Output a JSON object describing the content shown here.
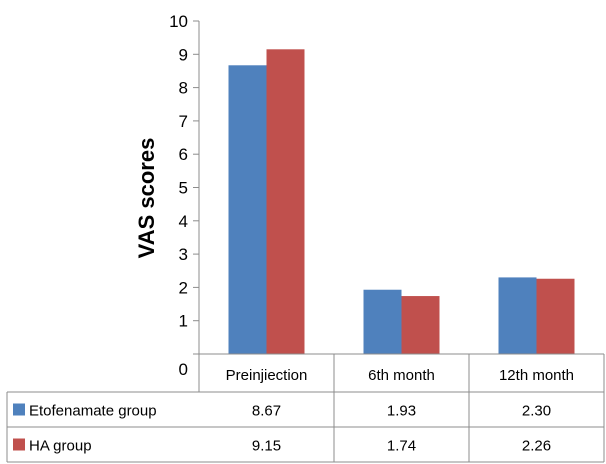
{
  "chart_data": {
    "type": "bar",
    "title": "",
    "xlabel": "",
    "ylabel": "VAS scores",
    "ylim": [
      0,
      10
    ],
    "yticks": [
      0,
      1,
      2,
      3,
      4,
      5,
      6,
      7,
      8,
      9,
      10
    ],
    "categories": [
      "Preinjiection",
      "6th month",
      "12th month"
    ],
    "grid": false,
    "legend": "data-table-bottom",
    "series": [
      {
        "name": "Etofenamate group",
        "color": "#4f81bd",
        "values": [
          8.67,
          1.93,
          2.3
        ],
        "labels": [
          "8.67",
          "1.93",
          "2.30"
        ]
      },
      {
        "name": "HA group",
        "color": "#c0504d",
        "values": [
          9.15,
          1.74,
          2.26
        ],
        "labels": [
          "9.15",
          "1.74",
          "2.26"
        ]
      }
    ]
  }
}
